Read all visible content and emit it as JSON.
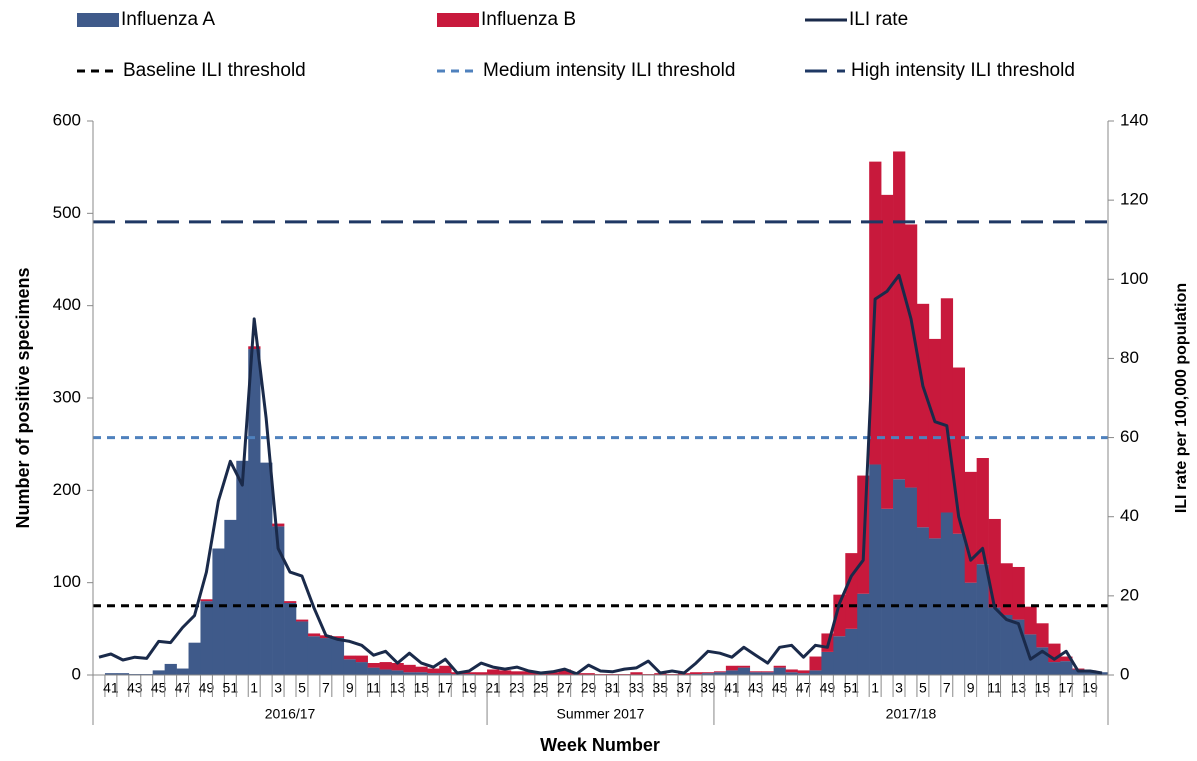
{
  "chart_data": {
    "type": "bar",
    "y_label": "Number of positive specimens",
    "y2_label": "ILI rate per 100,000 population",
    "x_label": "Week Number",
    "stacked": true,
    "category_groups": [
      {
        "label": "2016/17",
        "categories": [
          null,
          "41",
          null,
          "43",
          null,
          "45",
          null,
          "47",
          null,
          "49",
          null,
          "51",
          null,
          "1",
          null,
          "3",
          null,
          "5",
          null,
          "7",
          null,
          "9",
          null,
          "11",
          null,
          "13",
          null,
          "15",
          null,
          "17",
          null,
          "19",
          null
        ]
      },
      {
        "label": "Summer 2017",
        "categories": [
          "21",
          null,
          "23",
          null,
          "25",
          null,
          "27",
          null,
          "29",
          null,
          "31",
          null,
          "33",
          null,
          "35",
          null,
          "37",
          null,
          "39"
        ]
      },
      {
        "label": "2017/18",
        "categories": [
          null,
          "41",
          null,
          "43",
          null,
          "45",
          null,
          "47",
          null,
          "49",
          null,
          "51",
          null,
          "1",
          null,
          "3",
          null,
          "5",
          null,
          "7",
          null,
          "9",
          null,
          "11",
          null,
          "13",
          null,
          "15",
          null,
          "17",
          null,
          "19",
          null
        ]
      }
    ],
    "series": [
      {
        "name": "Influenza A",
        "color": "#3f5a8a",
        "values": [
          0,
          2,
          2,
          1,
          1,
          5,
          12,
          7,
          35,
          80,
          137,
          168,
          232,
          353,
          230,
          161,
          78,
          58,
          42,
          40,
          40,
          17,
          14,
          8,
          6,
          5,
          3,
          3,
          2,
          2,
          1,
          1,
          0,
          0,
          0,
          0,
          0,
          0,
          0,
          0,
          0,
          0,
          0,
          0,
          0,
          0,
          0,
          0,
          0,
          0,
          1,
          2,
          3,
          5,
          8,
          3,
          3,
          8,
          3,
          2,
          5,
          25,
          42,
          50,
          88,
          228,
          180,
          212,
          203,
          160,
          148,
          176,
          153,
          100,
          120,
          73,
          65,
          60,
          44,
          30,
          14,
          15,
          6,
          4,
          3
        ]
      },
      {
        "name": "Influenza B",
        "color": "#c8193c",
        "values": [
          0,
          0,
          0,
          0,
          0,
          0,
          0,
          0,
          0,
          2,
          0,
          0,
          0,
          3,
          0,
          3,
          2,
          2,
          3,
          3,
          2,
          4,
          7,
          5,
          8,
          8,
          8,
          6,
          5,
          8,
          2,
          2,
          3,
          6,
          5,
          4,
          4,
          2,
          3,
          6,
          2,
          2,
          1,
          1,
          1,
          3,
          1,
          2,
          1,
          2,
          2,
          1,
          1,
          5,
          2,
          1,
          1,
          2,
          3,
          3,
          15,
          20,
          45,
          82,
          128,
          328,
          340,
          355,
          285,
          242,
          216,
          232,
          180,
          120,
          115,
          96,
          56,
          57,
          30,
          26,
          20,
          5,
          1,
          1,
          0
        ]
      },
      {
        "name": "ILI rate",
        "color": "#1a2a4a",
        "type": "line",
        "axis": "y2",
        "values": [
          4.5,
          5.3,
          3.8,
          4.5,
          4.2,
          8.5,
          8.2,
          12,
          15,
          26,
          44,
          54,
          48,
          90,
          65,
          32,
          26,
          25,
          17,
          10,
          9,
          8.5,
          7.5,
          5,
          6,
          3,
          5.5,
          3,
          2,
          4,
          0.5,
          1,
          3,
          2,
          1.5,
          2,
          1,
          0.5,
          0.8,
          1.5,
          0.3,
          2.5,
          1,
          0.8,
          1.5,
          1.8,
          3.5,
          0.5,
          1,
          0.5,
          3,
          6,
          5.5,
          4.5,
          7,
          5,
          3,
          7,
          7.5,
          4.5,
          7.5,
          7,
          18,
          25,
          29,
          95,
          97,
          101,
          90,
          73,
          64,
          63,
          40,
          29,
          32,
          17,
          14,
          13,
          4,
          6,
          4,
          6,
          1,
          1,
          0.5
        ]
      }
    ],
    "lines": [
      {
        "name": "Baseline ILI threshold",
        "value": 17.5,
        "color": "#000000",
        "dash": "short",
        "axis": "y2"
      },
      {
        "name": "Medium intensity ILI threshold",
        "value": 60,
        "color": "#4f81bd",
        "dash": "short",
        "axis": "y2"
      },
      {
        "name": "High intensity ILI threshold",
        "value": 114.5,
        "color": "#1f3864",
        "dash": "long",
        "axis": "y2"
      }
    ],
    "ylim": [
      0,
      600
    ],
    "yticks": [
      0,
      100,
      200,
      300,
      400,
      500,
      600
    ],
    "y2lim": [
      0,
      140
    ],
    "y2ticks": [
      0,
      20,
      40,
      60,
      80,
      100,
      120,
      140
    ],
    "legend": "top"
  }
}
